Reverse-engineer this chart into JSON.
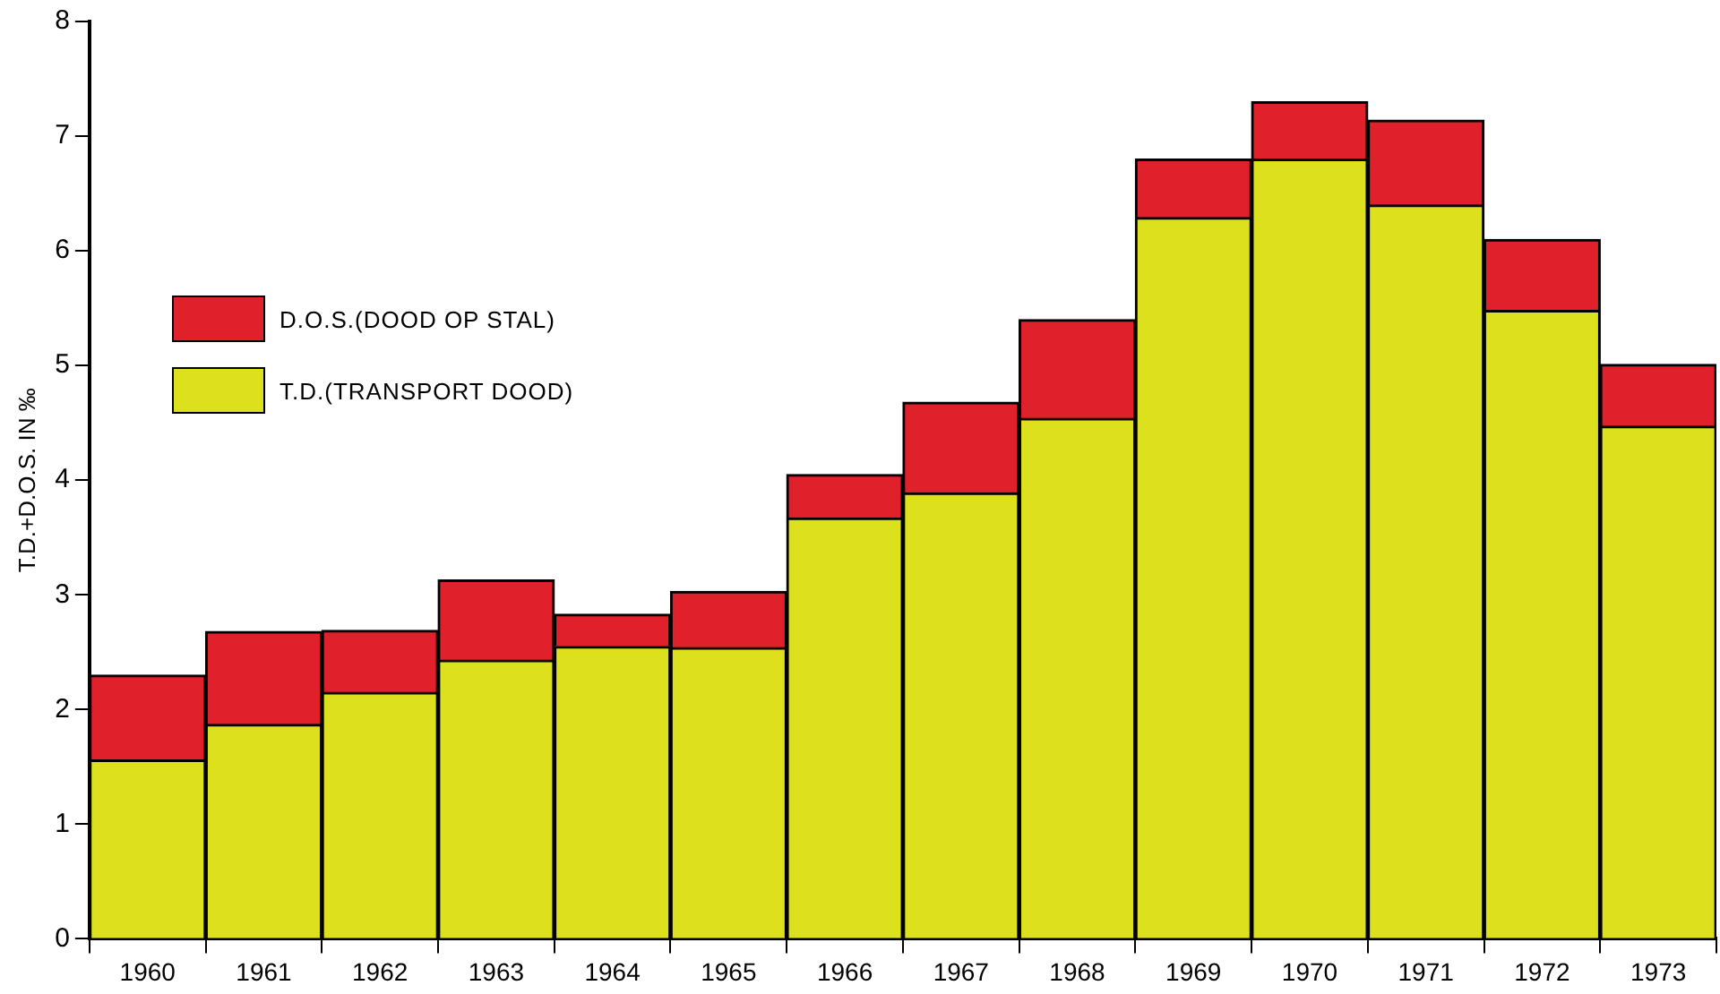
{
  "chart_data": {
    "type": "bar",
    "stacked": true,
    "ylabel": "T.D.+D.O.S. IN ‰",
    "categories": [
      "1960",
      "1961",
      "1962",
      "1963",
      "1964",
      "1965",
      "1966",
      "1967",
      "1968",
      "1969",
      "1970",
      "1971",
      "1972",
      "1973"
    ],
    "series": [
      {
        "name": "T.D.(TRANSPORT DOOD)",
        "color": "#dde01c",
        "values": [
          1.56,
          1.87,
          2.15,
          2.43,
          2.55,
          2.54,
          3.67,
          3.89,
          4.54,
          6.29,
          6.8,
          6.4,
          5.48,
          4.47
        ]
      },
      {
        "name": "D.O.S.(DOOD OP STAL)",
        "color": "#e0202a",
        "values": [
          0.74,
          0.81,
          0.54,
          0.7,
          0.28,
          0.49,
          0.38,
          0.79,
          0.86,
          0.51,
          0.5,
          0.74,
          0.62,
          0.54
        ]
      }
    ],
    "ylim": [
      0,
      8
    ],
    "yticks": [
      0,
      1,
      2,
      3,
      4,
      5,
      6,
      7,
      8
    ],
    "grid": false,
    "legend": "top left"
  }
}
